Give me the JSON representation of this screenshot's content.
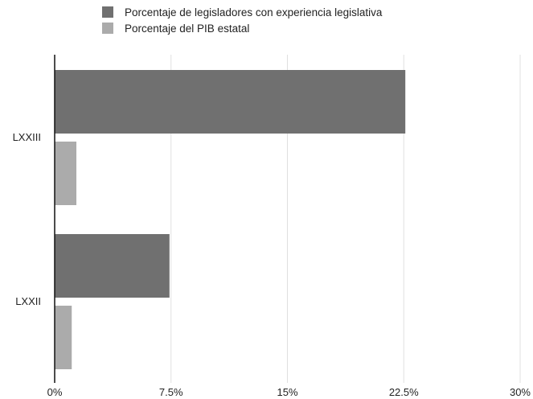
{
  "chart_data": {
    "type": "bar",
    "orientation": "horizontal",
    "categories": [
      "LXXIII",
      "LXXII"
    ],
    "series": [
      {
        "name": "Porcentaje de legisladores con experiencia legislativa",
        "values": [
          22.6,
          7.4
        ],
        "color": "#707070"
      },
      {
        "name": "Porcentaje del PIB estatal",
        "values": [
          1.4,
          1.1
        ],
        "color": "#ababab"
      }
    ],
    "xlim": [
      0,
      30
    ],
    "xticks": [
      0,
      7.5,
      15,
      22.5,
      30
    ],
    "xtick_labels": [
      "0%",
      "7.5%",
      "15%",
      "22.5%",
      "30%"
    ],
    "legend_position": "top",
    "grid": true
  }
}
